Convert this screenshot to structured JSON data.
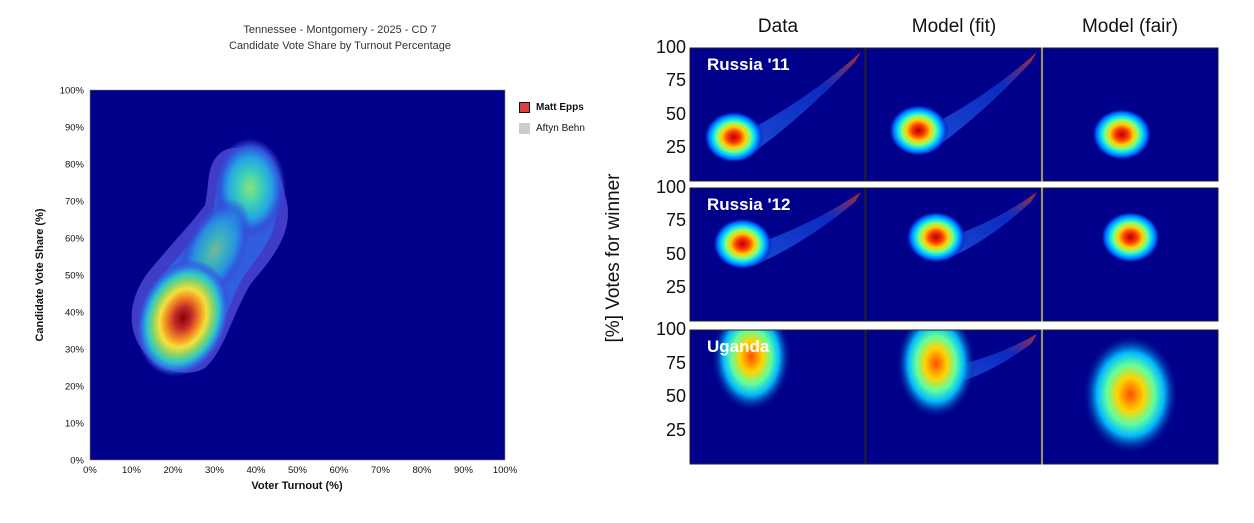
{
  "chart_data": [
    {
      "type": "heatmap",
      "title": "Tennessee - Montgomery - 2025 - CD 7",
      "subtitle": "Candidate Vote Share by Turnout Percentage",
      "xlabel": "Voter Turnout (%)",
      "ylabel": "Candidate Vote Share (%)",
      "xlim": [
        0,
        100
      ],
      "ylim": [
        0,
        100
      ],
      "xticks": [
        "0%",
        "10%",
        "20%",
        "30%",
        "40%",
        "50%",
        "60%",
        "70%",
        "80%",
        "90%",
        "100%"
      ],
      "yticks": [
        "0%",
        "10%",
        "20%",
        "30%",
        "40%",
        "50%",
        "60%",
        "70%",
        "80%",
        "90%",
        "100%"
      ],
      "background_color": "#00008b",
      "legend": [
        {
          "name": "Matt Epps",
          "color": "#d94040"
        },
        {
          "name": "Aftyn Behn",
          "color": "#cccccc"
        }
      ],
      "legend_position": "right",
      "density_peaks": [
        {
          "series": "Matt Epps",
          "x": 23,
          "y": 40,
          "level": 1.0
        },
        {
          "series": "Matt Epps",
          "x": 38,
          "y": 73,
          "level": 0.55
        }
      ]
    },
    {
      "type": "heatmap",
      "columns": [
        "Data",
        "Model (fit)",
        "Model (fair)"
      ],
      "rows": [
        "Russia '11",
        "Russia '12",
        "Uganda"
      ],
      "ylabel": "[%] Votes for winner",
      "yticks": [
        "100",
        "75",
        "50",
        "25"
      ],
      "ylim": [
        0,
        100
      ],
      "background_color": "#00008b",
      "blobs": [
        {
          "row": "Russia '11",
          "column": "Data",
          "x": 0.25,
          "y": 33,
          "tail": true
        },
        {
          "row": "Russia '11",
          "column": "Model (fit)",
          "x": 0.3,
          "y": 38,
          "tail": true
        },
        {
          "row": "Russia '11",
          "column": "Model (fair)",
          "x": 0.45,
          "y": 35,
          "tail": false
        },
        {
          "row": "Russia '12",
          "column": "Data",
          "x": 0.3,
          "y": 58,
          "tail": true
        },
        {
          "row": "Russia '12",
          "column": "Model (fit)",
          "x": 0.4,
          "y": 63,
          "tail": true
        },
        {
          "row": "Russia '12",
          "column": "Model (fair)",
          "x": 0.5,
          "y": 63,
          "tail": false
        },
        {
          "row": "Uganda",
          "column": "Data",
          "x": 0.35,
          "y": 80,
          "tail": false
        },
        {
          "row": "Uganda",
          "column": "Model (fit)",
          "x": 0.4,
          "y": 75,
          "tail": true
        },
        {
          "row": "Uganda",
          "column": "Model (fair)",
          "x": 0.5,
          "y": 52,
          "tail": false
        }
      ]
    }
  ]
}
